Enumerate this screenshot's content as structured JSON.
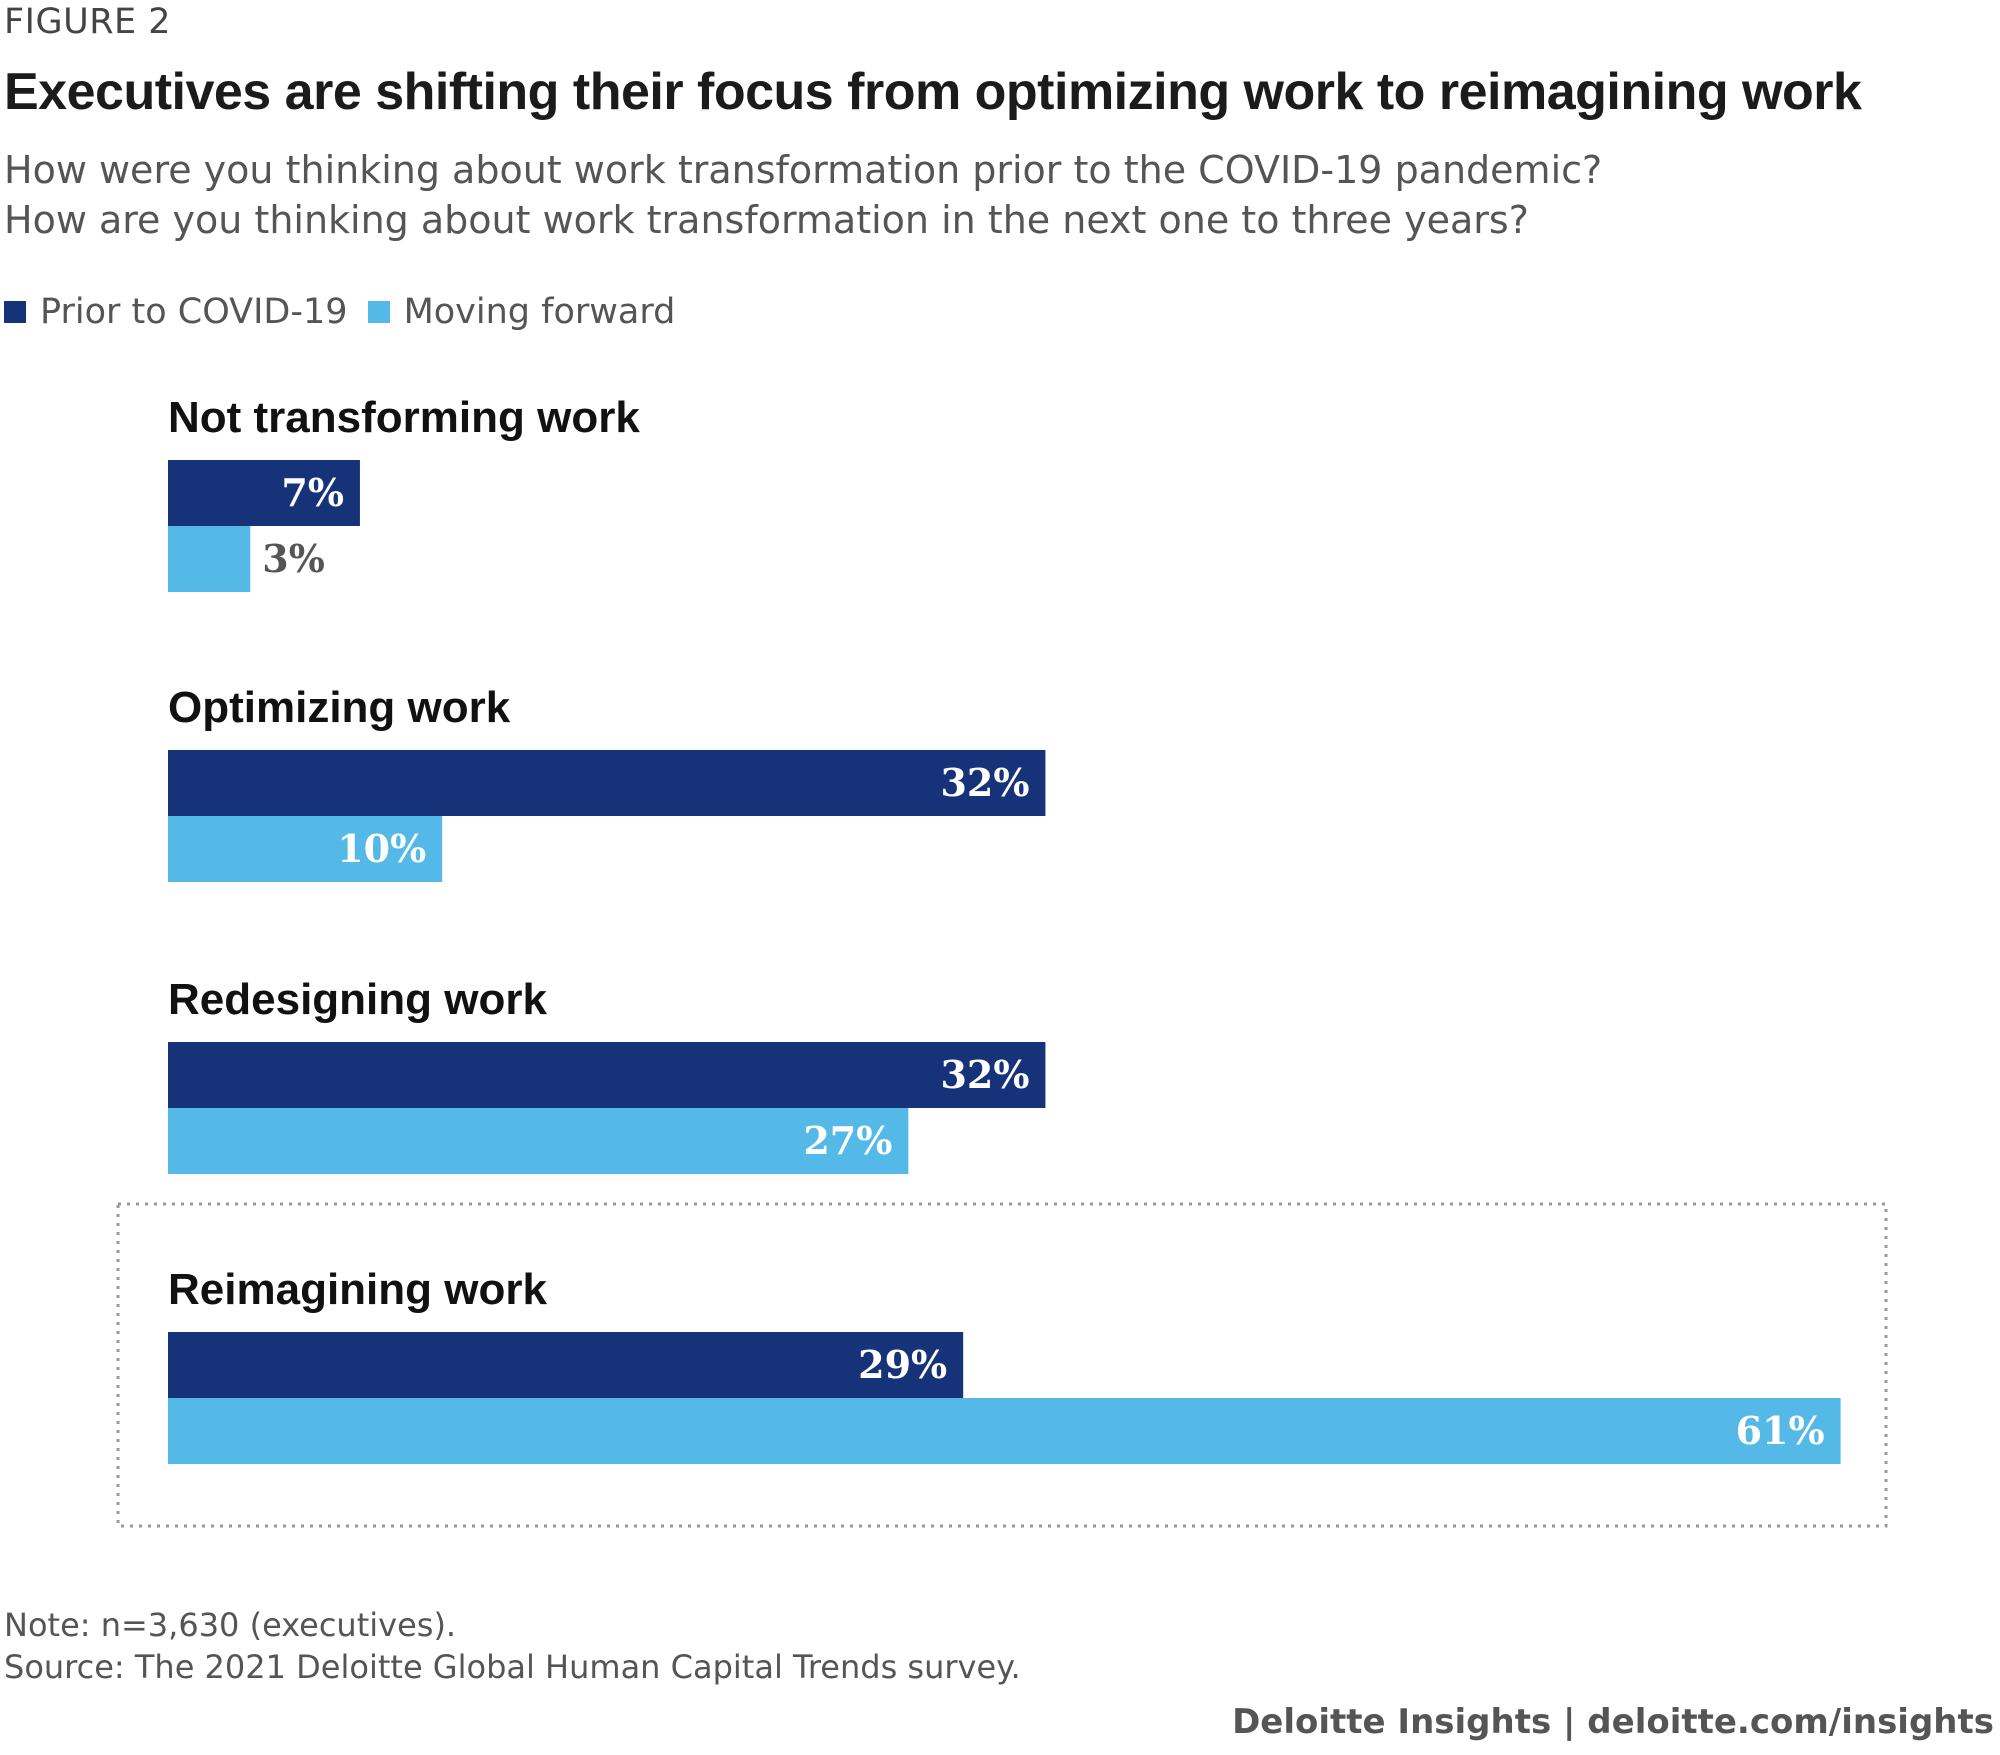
{
  "figure_label": "FIGURE 2",
  "colors": {
    "prior": "#16337a",
    "forward": "#55b9e8",
    "highlight_border": "#999999"
  },
  "legend": [
    {
      "label": "Prior to COVID-19",
      "color": "#16337a"
    },
    {
      "label": "Moving forward",
      "color": "#55b9e8"
    }
  ],
  "note": "Note: n=3,630 (executives).",
  "source": "Source: The 2021 Deloitte Global Human Capital Trends survey.",
  "brand": "Deloitte Insights | deloitte.com/insights",
  "chart_data": {
    "type": "bar",
    "orientation": "horizontal",
    "title": "Executives are shifting their focus from optimizing work to reimagining work",
    "subtitle": [
      "How were you thinking about work transformation prior to the COVID-19 pandemic?",
      "How are you thinking about work transformation in the next one to three years?"
    ],
    "categories": [
      "Not transforming work",
      "Optimizing work",
      "Redesigning work",
      "Reimagining work"
    ],
    "series": [
      {
        "name": "Prior to COVID-19",
        "values": [
          7,
          32,
          32,
          29
        ],
        "labels": [
          "7%",
          "32%",
          "32%",
          "29%"
        ]
      },
      {
        "name": "Moving forward",
        "values": [
          3,
          10,
          27,
          61
        ],
        "labels": [
          "3%",
          "10%",
          "27%",
          "61%"
        ]
      }
    ],
    "unit": "%",
    "xlim": [
      0,
      61
    ],
    "highlighted_category": "Reimagining work",
    "grid": false,
    "legend_position": "top-left"
  }
}
